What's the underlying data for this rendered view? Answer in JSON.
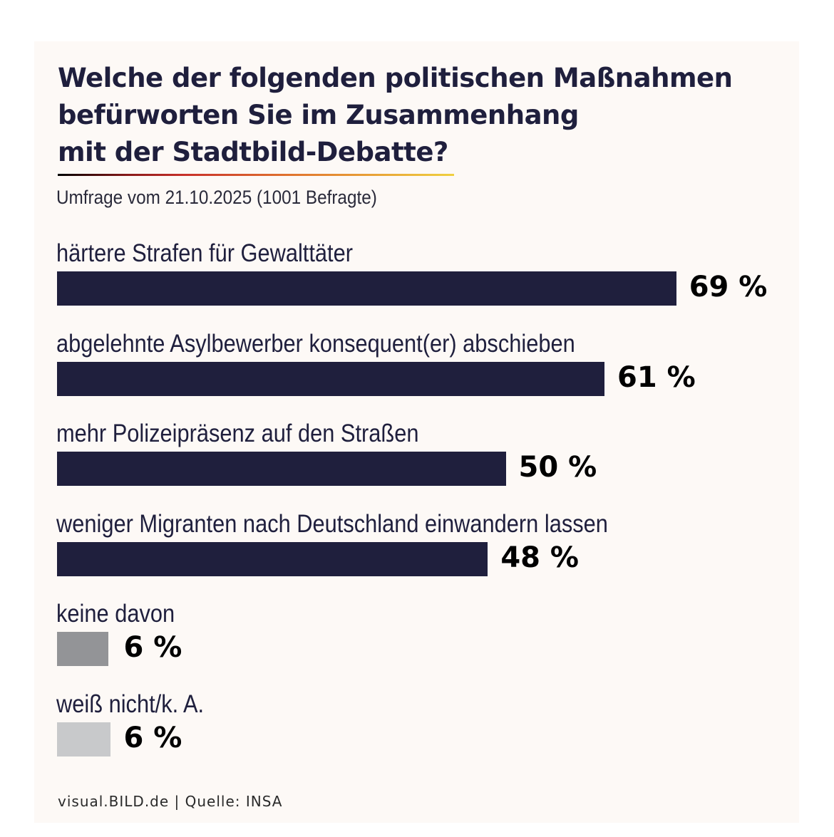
{
  "title_lines": [
    "Welche der folgenden politischen Maßnahmen",
    "befürworten Sie im Zusammenhang",
    "mit der Stadtbild-Debatte?"
  ],
  "subtitle": "Umfrage vom 21.10.2025 (1001 Befragte)",
  "footer": "visual.BILD.de | Quelle: INSA",
  "colors": {
    "primary_bar": "#1f1f3d",
    "none_bar": "#939497",
    "dont_know_bar": "#c8c9cb",
    "background": "#fdf9f6"
  },
  "chart_data": {
    "type": "bar",
    "orientation": "horizontal",
    "title": "Welche der folgenden politischen Maßnahmen befürworten Sie im Zusammenhang mit der Stadtbild-Debatte?",
    "subtitle": "Umfrage vom 21.10.2025 (1001 Befragte)",
    "unit": "%",
    "xlim": [
      0,
      100
    ],
    "grid": false,
    "legend": "none",
    "categories": [
      "härtere Strafen für Gewalttäter",
      "abgelehnte Asylbewerber konsequent(er) abschieben",
      "mehr Polizeipräsenz auf den Straßen",
      "weniger Migranten nach Deutschland einwandern lassen",
      "keine davon",
      "weiß nicht/k. A."
    ],
    "values": [
      69,
      61,
      50,
      48,
      6,
      6
    ],
    "value_labels": [
      "69 %",
      "61 %",
      "50 %",
      "48 %",
      "6 %",
      "6 %"
    ],
    "bar_colors": [
      "#1f1f3d",
      "#1f1f3d",
      "#1f1f3d",
      "#1f1f3d",
      "#939497",
      "#c8c9cb"
    ],
    "source": "visual.BILD.de | Quelle: INSA"
  }
}
